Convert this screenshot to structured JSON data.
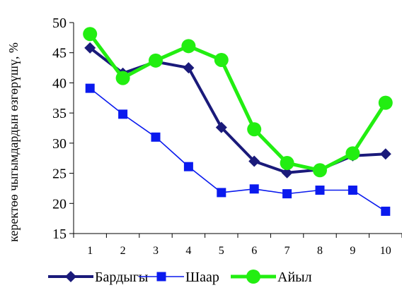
{
  "chart_data": {
    "type": "line",
    "title": "",
    "xlabel": "",
    "ylabel": "керектөө чыгымдардын өзгөрүшү, %",
    "categories": [
      "1",
      "2",
      "3",
      "4",
      "5",
      "6",
      "7",
      "8",
      "9",
      "10"
    ],
    "ylim": [
      15,
      50
    ],
    "yticks": [
      "15",
      "20",
      "25",
      "30",
      "35",
      "40",
      "45",
      "50"
    ],
    "grid": false,
    "legend_position": "bottom",
    "series": [
      {
        "name": "Бардыгы",
        "color": "#1a1a7a",
        "marker": "diamond",
        "values": [
          45.8,
          41.6,
          43.5,
          42.5,
          32.6,
          27.0,
          25.1,
          25.6,
          27.9,
          28.2
        ]
      },
      {
        "name": "Шаар",
        "color": "#0a1aee",
        "marker": "square",
        "values": [
          39.1,
          34.8,
          31.0,
          26.1,
          21.8,
          22.4,
          21.6,
          22.2,
          22.2,
          18.7
        ]
      },
      {
        "name": "Айыл",
        "color": "#22ee11",
        "marker": "circle",
        "values": [
          48.1,
          40.8,
          43.7,
          46.1,
          43.8,
          32.3,
          26.7,
          25.5,
          28.3,
          36.7
        ]
      }
    ]
  }
}
